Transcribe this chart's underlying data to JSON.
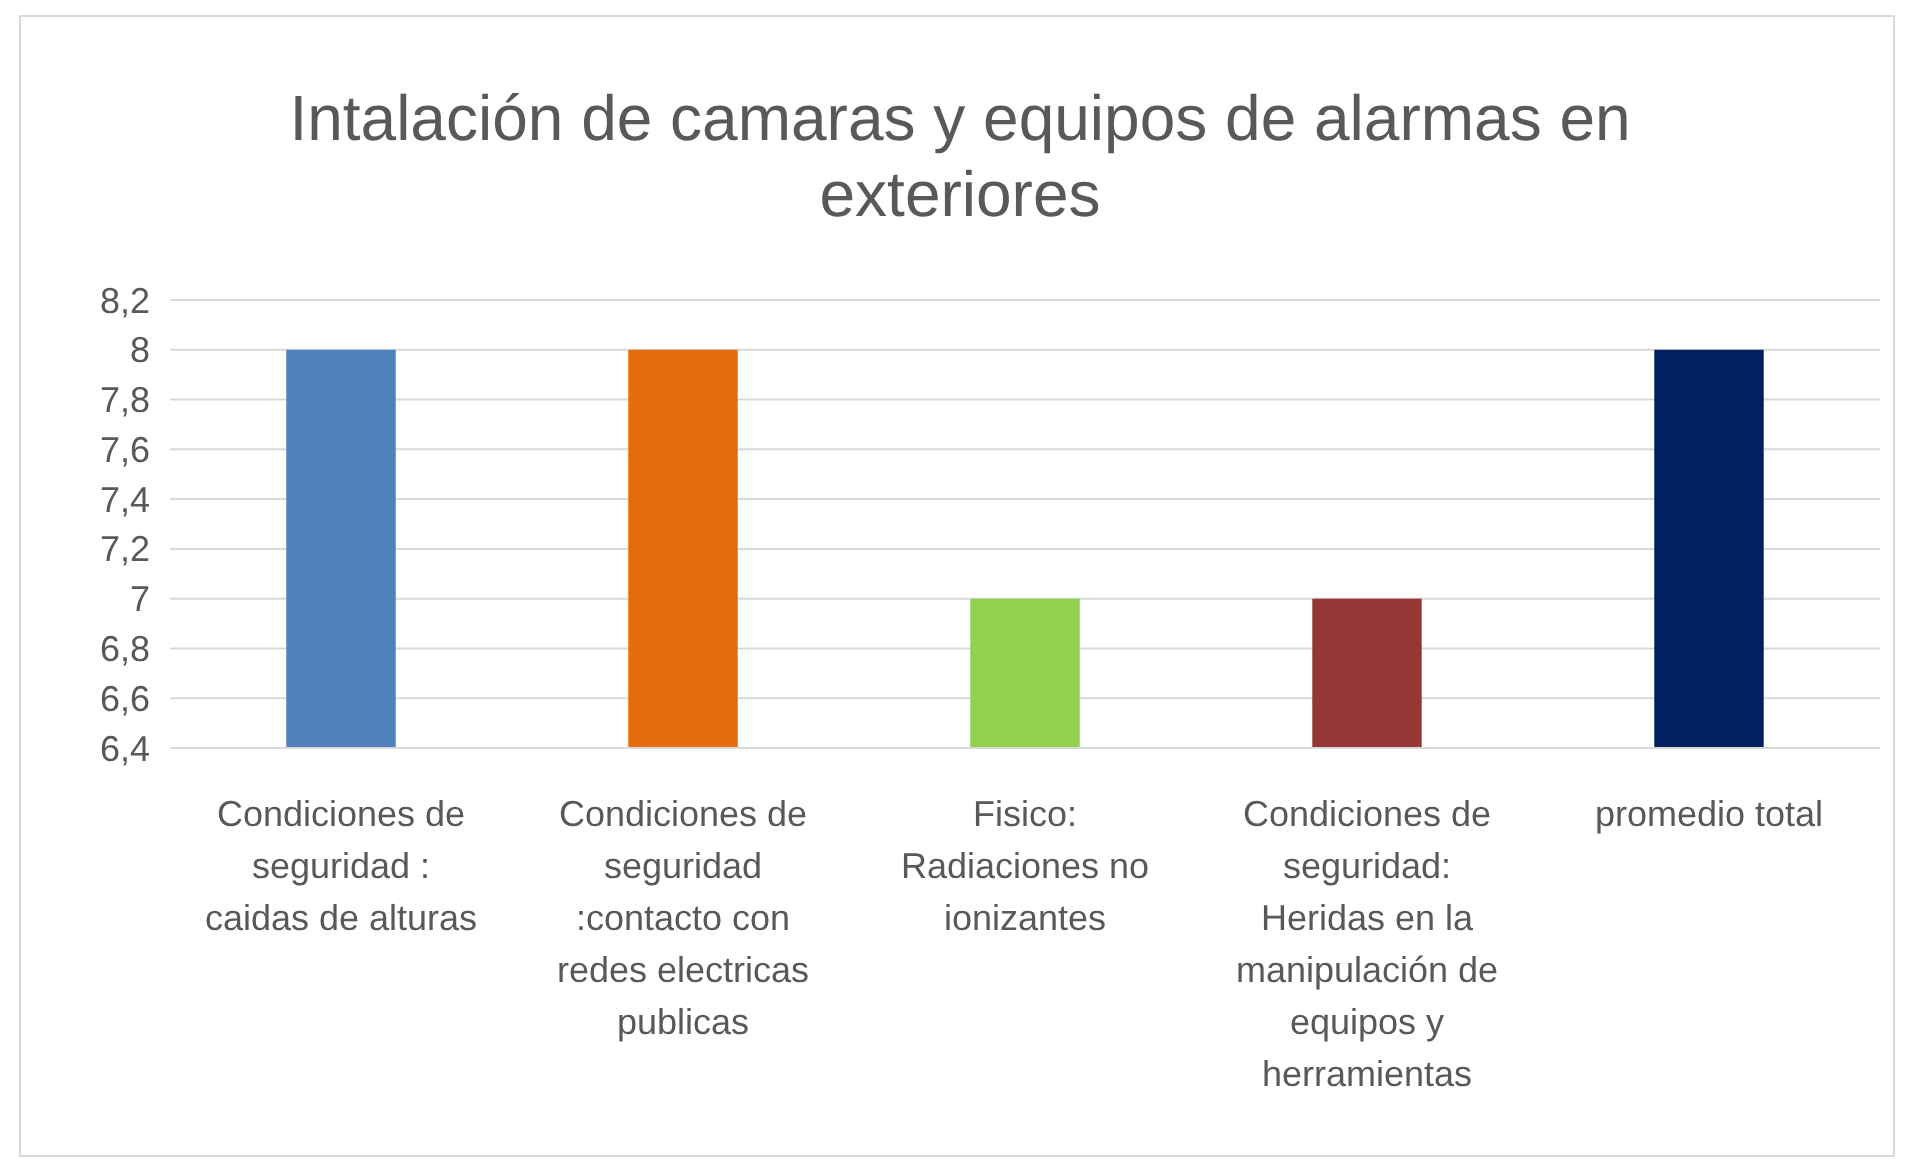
{
  "chart_data": {
    "type": "bar",
    "title": "Intalación de camaras y equipos de alarmas en exteriores",
    "categories": [
      "Condiciones de seguridad : caidas de alturas",
      "Condiciones de seguridad :contacto con redes electricas publicas",
      "Fisico: Radiaciones no ionizantes",
      "Condiciones de seguridad: Heridas en la manipulación de equipos y herramientas",
      "promedio total"
    ],
    "values": [
      8,
      8,
      7,
      7,
      8
    ],
    "colors": [
      "#4f81bd",
      "#e46c0a",
      "#92d050",
      "#953735",
      "#002060"
    ],
    "ylim": [
      6.4,
      8.2
    ],
    "yticks": [
      {
        "value": 6.4,
        "label": "6,4"
      },
      {
        "value": 6.6,
        "label": "6,6"
      },
      {
        "value": 6.8,
        "label": "6,8"
      },
      7,
      {
        "value": 7.2,
        "label": "7,2"
      },
      {
        "value": 7.4,
        "label": "7,4"
      },
      {
        "value": 7.6,
        "label": "7,6"
      },
      {
        "value": 7.8,
        "label": "7,8"
      },
      8,
      {
        "value": 8.2,
        "label": "8,2"
      }
    ],
    "grid": "y"
  }
}
